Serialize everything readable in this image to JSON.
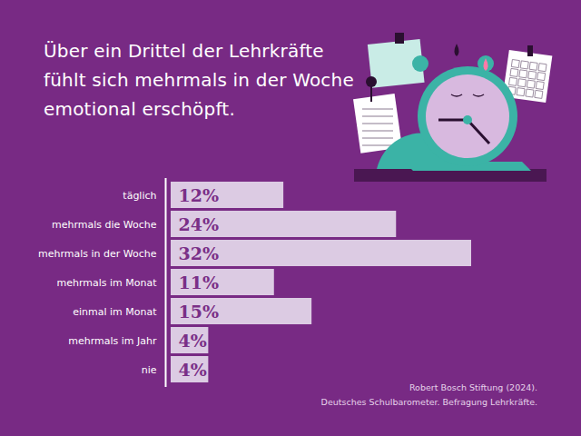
{
  "chart_data": {
    "type": "bar",
    "title": "Über ein Drittel der Lehrkräfte fühlt sich mehrmals in der Woche emotional erschöpft.",
    "categories": [
      "täglich",
      "mehrmals die Woche",
      "mehrmals in der Woche",
      "mehrmals im Monat",
      "einmal im Monat",
      "mehrmals im Jahr",
      "nie"
    ],
    "values": [
      12,
      24,
      32,
      11,
      15,
      4,
      4
    ],
    "value_labels": [
      "12%",
      "24%",
      "32%",
      "11%",
      "15%",
      "4%",
      "4%"
    ],
    "xlim": [
      0,
      32
    ],
    "orientation": "horizontal",
    "data_labels": true,
    "tick_labels": "y",
    "grid": false,
    "color": "#dccbe3",
    "source": [
      "Robert Bosch Stiftung (2024).",
      "Deutsches Schulbarometer. Befragung Lehrkräfte."
    ]
  }
}
